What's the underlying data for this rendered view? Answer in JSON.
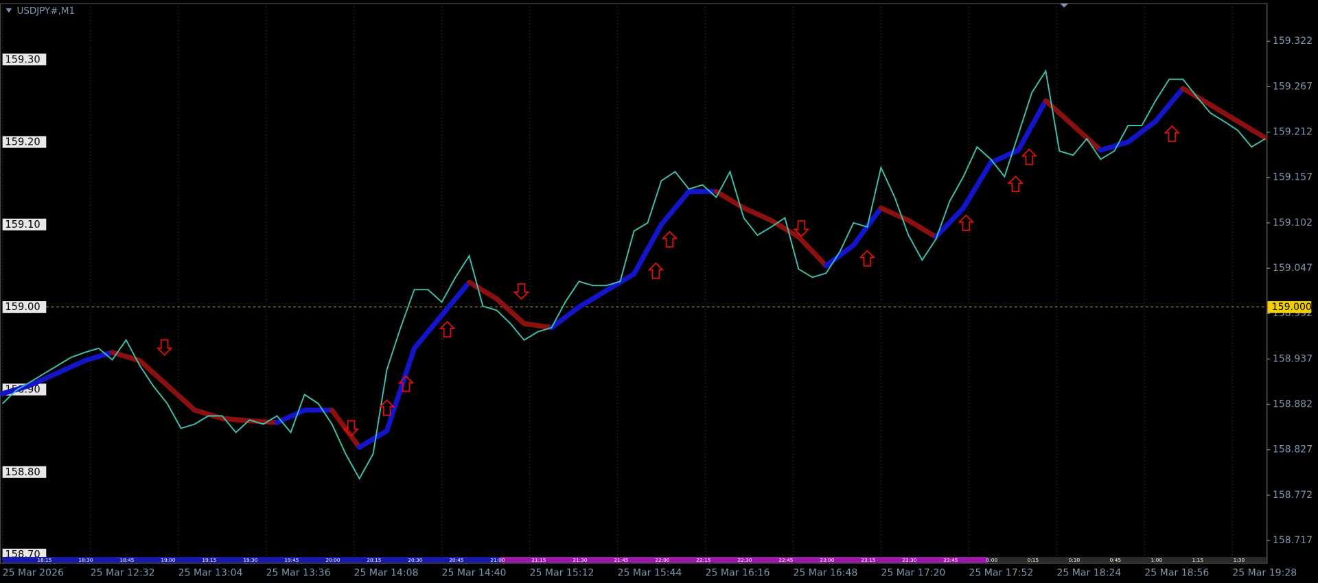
{
  "chart_data": {
    "type": "line",
    "title": "USDJPY#,M1",
    "xlim": [
      "12:00",
      "19:41"
    ],
    "xticks": [
      {
        "value": "12:00",
        "label": "25 Mar 2026"
      },
      {
        "value": "12:32",
        "label": "25 Mar 12:32"
      },
      {
        "value": "13:04",
        "label": "25 Mar 13:04"
      },
      {
        "value": "13:36",
        "label": "25 Mar 13:36"
      },
      {
        "value": "14:08",
        "label": "25 Mar 14:08"
      },
      {
        "value": "14:40",
        "label": "25 Mar 14:40"
      },
      {
        "value": "15:12",
        "label": "25 Mar 15:12"
      },
      {
        "value": "15:44",
        "label": "25 Mar 15:44"
      },
      {
        "value": "16:16",
        "label": "25 Mar 16:16"
      },
      {
        "value": "16:48",
        "label": "25 Mar 16:48"
      },
      {
        "value": "17:20",
        "label": "25 Mar 17:20"
      },
      {
        "value": "17:52",
        "label": "25 Mar 17:52"
      },
      {
        "value": "18:24",
        "label": "25 Mar 18:24"
      },
      {
        "value": "18:56",
        "label": "25 Mar 18:56"
      },
      {
        "value": "19:28",
        "label": "25 Mar 19:28"
      }
    ],
    "ylim": [
      158.692,
      159.368
    ],
    "yticks": [
      {
        "value": 159.3,
        "label": "159.30"
      },
      {
        "value": 159.2,
        "label": "159.20"
      },
      {
        "value": 159.1,
        "label": "159.10"
      },
      {
        "value": 159,
        "label": "159.00"
      },
      {
        "value": 158.9,
        "label": "158.90"
      },
      {
        "value": 158.8,
        "label": "158.80"
      },
      {
        "value": 158.7,
        "label": "158.70"
      }
    ],
    "y2lim": [
      158.692,
      159.368
    ],
    "y2ticks": [
      159.322,
      159.267,
      159.212,
      159.157,
      159.102,
      159.047,
      158.992,
      158.937,
      158.882,
      158.827,
      158.772,
      158.717
    ],
    "current_price": {
      "value": 159,
      "label": "159.000",
      "color": "#f5d000"
    },
    "series": [
      {
        "color": "#3fbfae",
        "x": [
          "12:00",
          "12:05",
          "12:10",
          "12:15",
          "12:20",
          "12:25",
          "12:30",
          "12:35",
          "12:40",
          "12:45",
          "12:50",
          "12:55",
          "13:00",
          "13:05",
          "13:10",
          "13:15",
          "13:20",
          "13:25",
          "13:30",
          "13:35",
          "13:40",
          "13:45",
          "13:50",
          "13:55",
          "14:00",
          "14:05",
          "14:10",
          "14:15",
          "14:20",
          "14:25",
          "14:30",
          "14:35",
          "14:40",
          "14:45",
          "14:50",
          "14:55",
          "15:00",
          "15:05",
          "15:10",
          "15:15",
          "15:20",
          "15:25",
          "15:30",
          "15:35",
          "15:40",
          "15:45",
          "15:50",
          "15:55",
          "16:00",
          "16:05",
          "16:10",
          "16:15",
          "16:20",
          "16:25",
          "16:30",
          "16:35",
          "16:40",
          "16:45",
          "16:50",
          "16:55",
          "17:00",
          "17:05",
          "17:10",
          "17:15",
          "17:20",
          "17:25",
          "17:30",
          "17:35",
          "17:40",
          "17:45",
          "17:50",
          "17:55",
          "18:00",
          "18:05",
          "18:10",
          "18:15",
          "18:20",
          "18:25",
          "18:30",
          "18:35",
          "18:40",
          "18:45",
          "18:50",
          "18:55",
          "19:00",
          "19:05",
          "19:10",
          "19:15",
          "19:20",
          "19:25",
          "19:30",
          "19:35",
          "19:40"
        ],
        "values": [
          158.883,
          158.899,
          158.909,
          158.919,
          158.929,
          158.939,
          158.945,
          158.95,
          158.936,
          158.96,
          158.929,
          158.904,
          158.883,
          158.853,
          158.858,
          158.868,
          158.868,
          158.848,
          158.863,
          158.858,
          158.868,
          158.848,
          158.894,
          158.883,
          158.858,
          158.822,
          158.792,
          158.822,
          158.924,
          158.975,
          159.021,
          159.021,
          159.006,
          159.036,
          159.062,
          159.001,
          158.996,
          158.98,
          158.96,
          158.97,
          158.975,
          159.006,
          159.031,
          159.026,
          159.026,
          159.031,
          159.092,
          159.102,
          159.153,
          159.164,
          159.143,
          159.148,
          159.133,
          159.164,
          159.108,
          159.087,
          159.097,
          159.108,
          159.046,
          159.036,
          159.041,
          159.067,
          159.102,
          159.097,
          159.169,
          159.133,
          159.087,
          159.057,
          159.082,
          159.128,
          159.158,
          159.194,
          159.179,
          159.158,
          159.209,
          159.26,
          159.286,
          159.189,
          159.184,
          159.204,
          159.179,
          159.189,
          159.22,
          159.22,
          159.25,
          159.276,
          159.276,
          159.255,
          159.235,
          159.225,
          159.214,
          159.194,
          159.204
        ]
      },
      {
        "color": "#1414c8",
        "down_color": "#8b1010",
        "x": [
          "12:00",
          "12:10",
          "12:20",
          "12:30",
          "12:40",
          "12:50",
          "13:00",
          "13:10",
          "13:20",
          "13:30",
          "13:40",
          "13:50",
          "14:00",
          "14:10",
          "14:20",
          "14:30",
          "14:40",
          "14:50",
          "15:00",
          "15:10",
          "15:20",
          "15:30",
          "15:40",
          "15:50",
          "16:00",
          "16:10",
          "16:20",
          "16:30",
          "16:40",
          "16:50",
          "17:00",
          "17:10",
          "17:20",
          "17:30",
          "17:40",
          "17:50",
          "18:00",
          "18:10",
          "18:20",
          "18:30",
          "18:40",
          "18:50",
          "19:00",
          "19:10",
          "19:20",
          "19:30",
          "19:40"
        ],
        "values": [
          158.895,
          158.905,
          158.92,
          158.935,
          158.945,
          158.935,
          158.905,
          158.875,
          158.865,
          158.862,
          158.86,
          158.875,
          158.875,
          158.83,
          158.85,
          158.95,
          158.99,
          159.03,
          159.01,
          158.98,
          158.975,
          159,
          159.02,
          159.04,
          159.1,
          159.14,
          159.14,
          159.12,
          159.105,
          159.085,
          159.05,
          159.075,
          159.12,
          159.105,
          159.085,
          159.12,
          159.175,
          159.19,
          159.25,
          159.22,
          159.19,
          159.2,
          159.225,
          159.265,
          159.245,
          159.225,
          159.205
        ]
      }
    ],
    "arrows": [
      {
        "time": "12:59",
        "price": 158.951,
        "direction": "down"
      },
      {
        "time": "14:07",
        "price": 158.853,
        "direction": "down"
      },
      {
        "time": "14:20",
        "price": 158.878,
        "direction": "up"
      },
      {
        "time": "14:27",
        "price": 158.907,
        "direction": "up"
      },
      {
        "time": "14:42",
        "price": 158.973,
        "direction": "up"
      },
      {
        "time": "15:09",
        "price": 159.019,
        "direction": "down"
      },
      {
        "time": "15:58",
        "price": 159.044,
        "direction": "up"
      },
      {
        "time": "16:03",
        "price": 159.082,
        "direction": "up"
      },
      {
        "time": "16:51",
        "price": 159.095,
        "direction": "down"
      },
      {
        "time": "17:15",
        "price": 159.059,
        "direction": "up"
      },
      {
        "time": "17:51",
        "price": 159.102,
        "direction": "up"
      },
      {
        "time": "18:09",
        "price": 159.149,
        "direction": "up"
      },
      {
        "time": "18:14",
        "price": 159.182,
        "direction": "up"
      },
      {
        "time": "19:06",
        "price": 159.21,
        "direction": "up"
      }
    ],
    "arrow_color": "#e01010",
    "timeline_labels": [
      "18:15",
      "18:30",
      "18:45",
      "19:00",
      "19:15",
      "19:30",
      "19:45",
      "20:00",
      "20:15",
      "20:30",
      "20:45",
      "21:00",
      "21:15",
      "21:30",
      "21:45",
      "22:00",
      "22:15",
      "22:30",
      "22:45",
      "23:00",
      "23:15",
      "23:30",
      "23:45",
      "0:00",
      "0:15",
      "0:30",
      "0:45",
      "1:00",
      "1:15",
      "1:30"
    ]
  }
}
